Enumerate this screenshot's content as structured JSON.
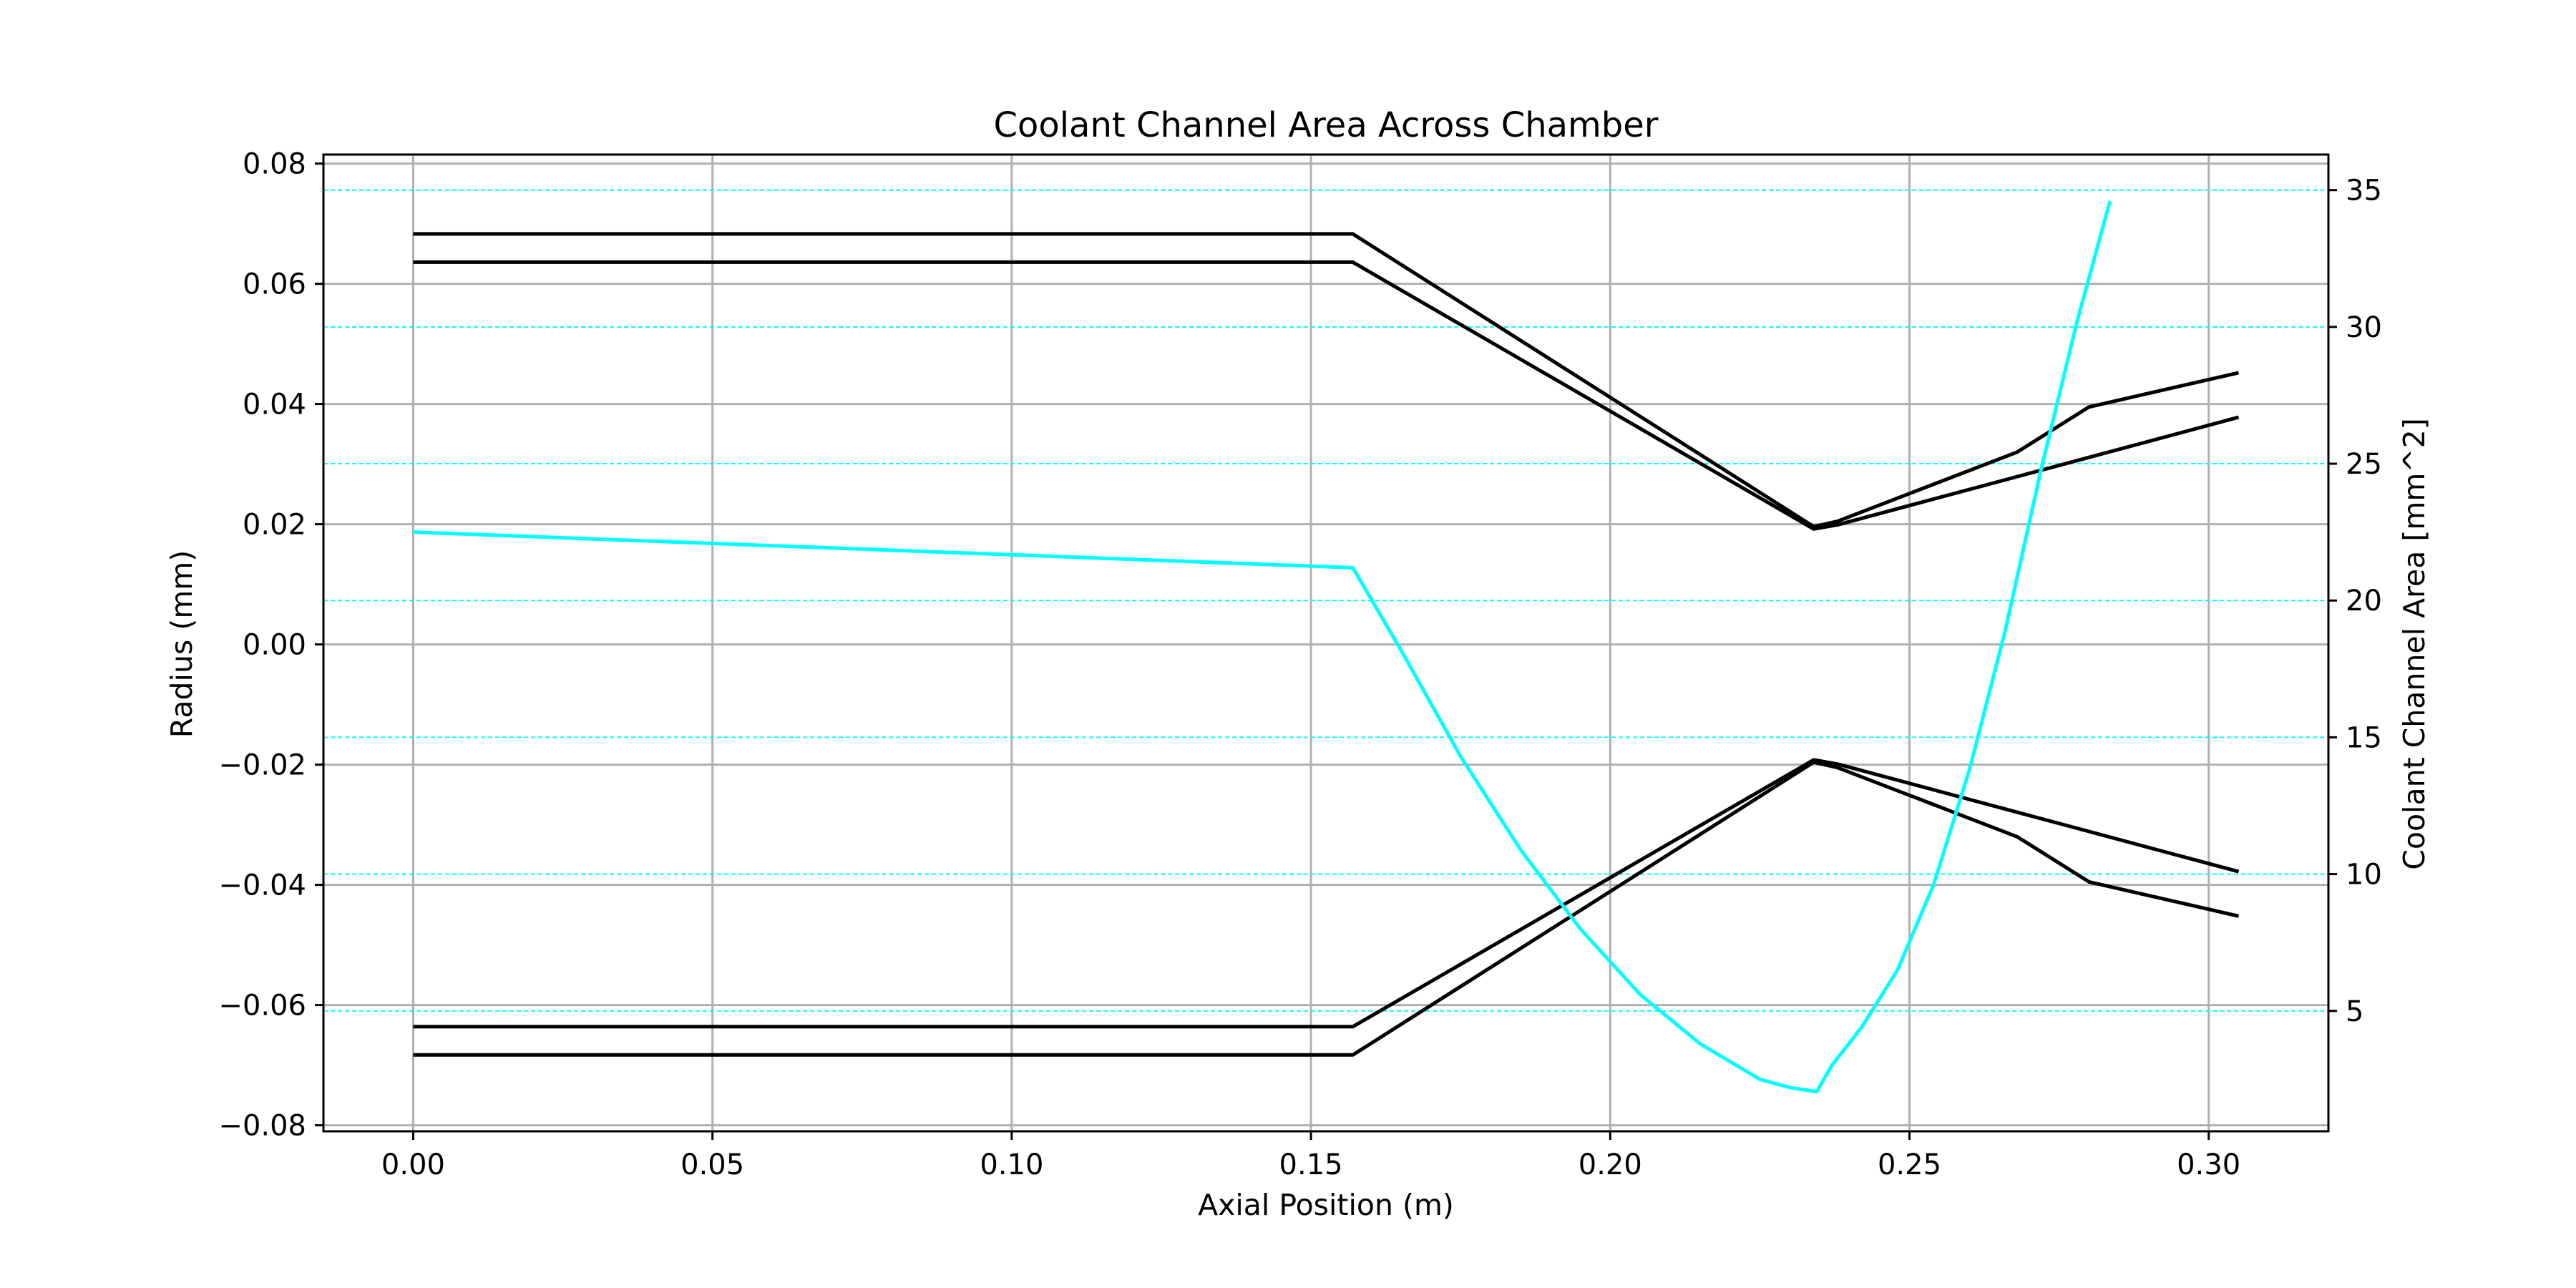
{
  "chart_data": {
    "type": "line",
    "title": "Coolant Channel Area Across Chamber",
    "xlabel": "Axial Position (m)",
    "ylabel": "Radius (mm)",
    "y2label": "Coolant Channel Area [mm^2]",
    "xlim": [
      -0.015,
      0.32
    ],
    "ylim": [
      -0.081,
      0.0815
    ],
    "y2lim": [
      0.6,
      36.3
    ],
    "x_ticks": [
      "0.00",
      "0.05",
      "0.10",
      "0.15",
      "0.20",
      "0.25",
      "0.30"
    ],
    "x_tick_values": [
      0.0,
      0.05,
      0.1,
      0.15,
      0.2,
      0.25,
      0.3
    ],
    "y_ticks": [
      "0.08",
      "0.06",
      "0.04",
      "0.02",
      "0.00",
      "−0.02",
      "−0.04",
      "−0.06",
      "−0.08"
    ],
    "y_tick_values": [
      0.08,
      0.06,
      0.04,
      0.02,
      0.0,
      -0.02,
      -0.04,
      -0.06,
      -0.08
    ],
    "y2_ticks": [
      "35",
      "30",
      "25",
      "20",
      "15",
      "10",
      "5"
    ],
    "y2_tick_values": [
      35,
      30,
      25,
      20,
      15,
      10,
      5
    ],
    "grid": true,
    "secondary_grid": "dashed",
    "colors": {
      "contour": "#000000",
      "area": "#00ffff",
      "grid": "#b0b0b0",
      "area_axis_label": "#00ffff"
    },
    "series": [
      {
        "axis": "left",
        "color": "#000000",
        "x": [
          0.0,
          0.157,
          0.234,
          0.238,
          0.268,
          0.28,
          0.305
        ],
        "y": [
          0.0683,
          0.0683,
          0.0196,
          0.0205,
          0.032,
          0.0395,
          0.0452
        ]
      },
      {
        "axis": "left",
        "color": "#000000",
        "x": [
          0.0,
          0.157,
          0.234,
          0.238,
          0.305
        ],
        "y": [
          0.0636,
          0.0636,
          0.0192,
          0.0199,
          0.0378
        ]
      },
      {
        "axis": "left",
        "color": "#000000",
        "x": [
          0.0,
          0.157,
          0.234,
          0.238,
          0.305
        ],
        "y": [
          -0.0636,
          -0.0636,
          -0.0192,
          -0.0199,
          -0.0378
        ]
      },
      {
        "axis": "left",
        "color": "#000000",
        "x": [
          0.0,
          0.157,
          0.234,
          0.238,
          0.268,
          0.28,
          0.305
        ],
        "y": [
          -0.0683,
          -0.0683,
          -0.0196,
          -0.0205,
          -0.032,
          -0.0395,
          -0.0452
        ]
      },
      {
        "axis": "right",
        "color": "#00ffff",
        "x": [
          0.0,
          0.157,
          0.165,
          0.175,
          0.185,
          0.195,
          0.205,
          0.215,
          0.225,
          0.23,
          0.2345,
          0.237,
          0.242,
          0.248,
          0.254,
          0.26,
          0.266,
          0.272,
          0.278,
          0.2835
        ],
        "y": [
          22.5,
          21.2,
          18.2,
          14.3,
          10.9,
          8.0,
          5.6,
          3.8,
          2.5,
          2.2,
          2.05,
          3.0,
          4.4,
          6.5,
          9.6,
          13.8,
          18.9,
          24.8,
          30.2,
          34.6
        ]
      }
    ]
  }
}
